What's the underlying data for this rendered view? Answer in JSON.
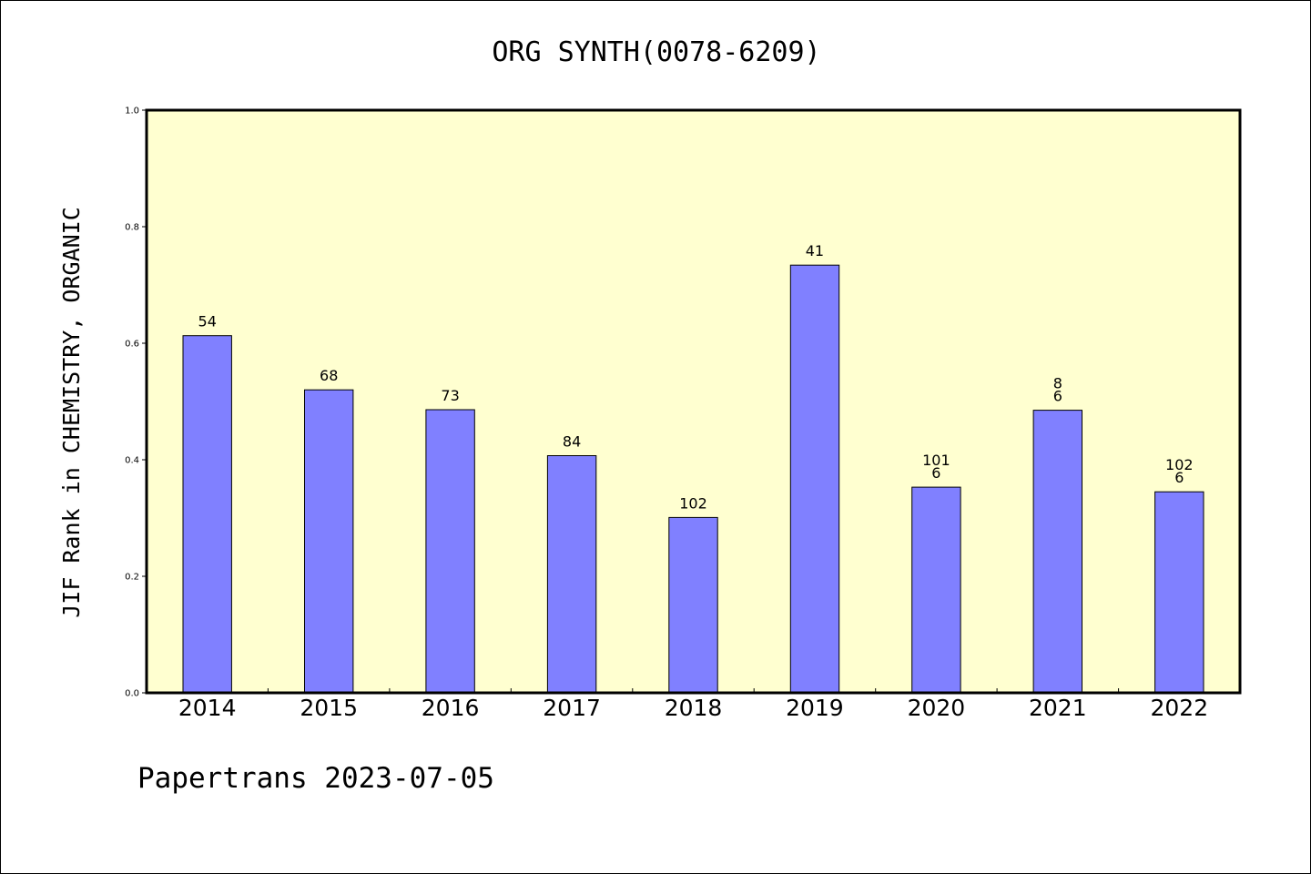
{
  "chart_data": {
    "type": "bar",
    "title": "ORG SYNTH(0078-6209)",
    "xlabel": "",
    "ylabel": "JIF Rank in CHEMISTRY, ORGANIC",
    "categories": [
      "2014",
      "2015",
      "2016",
      "2017",
      "2018",
      "2019",
      "2020",
      "2021",
      "2022"
    ],
    "values": [
      0.613,
      0.52,
      0.486,
      0.407,
      0.301,
      0.734,
      0.353,
      0.485,
      0.345
    ],
    "bar_labels": [
      [
        "54"
      ],
      [
        "68"
      ],
      [
        "73"
      ],
      [
        "84"
      ],
      [
        "102"
      ],
      [
        "41"
      ],
      [
        "101",
        "6"
      ],
      [
        "8",
        "6"
      ],
      [
        "102",
        "6"
      ]
    ],
    "ylim": [
      0,
      1.0
    ],
    "yticks": [
      "0.0",
      "0.2",
      "0.4",
      "0.6",
      "0.8",
      "1.0"
    ],
    "grid": false,
    "legend": "none",
    "colors": {
      "bar": "#8080ff",
      "plot_background": "#ffffd0"
    }
  },
  "footer": {
    "text": "Papertrans 2023-07-05"
  }
}
